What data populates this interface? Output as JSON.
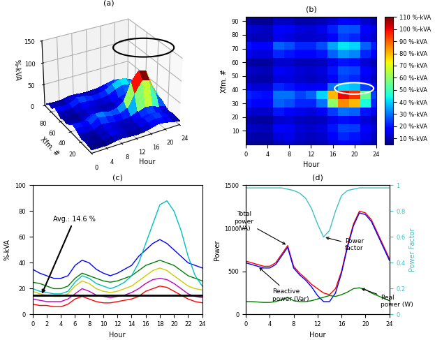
{
  "chart_data": [
    {
      "type": "surface",
      "title": "(a)",
      "x_label": "Hour",
      "y_label": "Xfm. #",
      "z_label": "%-kVA",
      "x": [
        0,
        2,
        4,
        6,
        8,
        10,
        12,
        14,
        16,
        18,
        20,
        22,
        24
      ],
      "y": [
        0,
        6,
        12,
        18,
        24,
        30,
        36,
        42,
        48,
        54,
        60,
        66,
        72,
        78,
        84,
        90
      ],
      "cells": [
        [
          8,
          7,
          7,
          10,
          12,
          10,
          9,
          10,
          14,
          18,
          16,
          12,
          9
        ],
        [
          10,
          9,
          9,
          14,
          15,
          12,
          11,
          12,
          18,
          22,
          20,
          15,
          11
        ],
        [
          12,
          11,
          10,
          18,
          16,
          13,
          12,
          14,
          20,
          25,
          24,
          17,
          13
        ],
        [
          9,
          8,
          8,
          12,
          13,
          11,
          10,
          11,
          15,
          19,
          18,
          13,
          10
        ],
        [
          14,
          12,
          12,
          20,
          18,
          15,
          14,
          16,
          24,
          30,
          28,
          20,
          15
        ],
        [
          20,
          18,
          17,
          28,
          26,
          22,
          22,
          30,
          60,
          85,
          80,
          45,
          22
        ],
        [
          22,
          20,
          19,
          30,
          30,
          25,
          28,
          40,
          80,
          100,
          95,
          55,
          25
        ],
        [
          15,
          13,
          13,
          22,
          20,
          17,
          16,
          18,
          30,
          40,
          38,
          25,
          16
        ],
        [
          10,
          9,
          9,
          14,
          14,
          12,
          11,
          12,
          18,
          24,
          22,
          15,
          11
        ],
        [
          12,
          11,
          10,
          16,
          15,
          13,
          12,
          14,
          20,
          26,
          25,
          17,
          13
        ],
        [
          9,
          8,
          8,
          12,
          12,
          10,
          10,
          11,
          15,
          20,
          19,
          13,
          10
        ],
        [
          16,
          14,
          14,
          22,
          20,
          18,
          17,
          20,
          28,
          34,
          32,
          22,
          17
        ],
        [
          20,
          18,
          18,
          28,
          26,
          22,
          22,
          26,
          35,
          42,
          40,
          28,
          21
        ],
        [
          11,
          10,
          10,
          15,
          14,
          12,
          12,
          13,
          18,
          24,
          22,
          15,
          12
        ],
        [
          13,
          12,
          11,
          17,
          16,
          14,
          13,
          15,
          21,
          27,
          26,
          18,
          14
        ],
        [
          8,
          7,
          7,
          11,
          11,
          9,
          9,
          10,
          13,
          17,
          16,
          12,
          9
        ]
      ],
      "xlim": [
        0,
        24
      ],
      "xticks": [
        0,
        4,
        8,
        12,
        16,
        20,
        24
      ],
      "ylim": [
        0,
        94
      ],
      "yticks": [
        20,
        40,
        60,
        80
      ],
      "zlim": [
        0,
        150
      ],
      "zticks": [
        0,
        50,
        100,
        150
      ]
    },
    {
      "type": "heatmap",
      "title": "(b)",
      "x_label": "Hour",
      "y_label": "Xfm. #",
      "x": [
        0,
        2,
        4,
        6,
        8,
        10,
        12,
        14,
        16,
        18,
        20,
        22,
        24
      ],
      "y": [
        0,
        6,
        12,
        18,
        24,
        30,
        36,
        42,
        48,
        54,
        60,
        66,
        72,
        78,
        84,
        90
      ],
      "cells": [
        [
          8,
          7,
          7,
          10,
          12,
          10,
          9,
          10,
          14,
          18,
          16,
          12,
          9
        ],
        [
          10,
          9,
          9,
          14,
          15,
          12,
          11,
          12,
          18,
          22,
          20,
          15,
          11
        ],
        [
          12,
          11,
          10,
          18,
          16,
          13,
          12,
          14,
          20,
          25,
          24,
          17,
          13
        ],
        [
          9,
          8,
          8,
          12,
          13,
          11,
          10,
          11,
          15,
          19,
          18,
          13,
          10
        ],
        [
          14,
          12,
          12,
          20,
          18,
          15,
          14,
          16,
          24,
          30,
          28,
          20,
          15
        ],
        [
          20,
          18,
          17,
          28,
          26,
          22,
          22,
          30,
          60,
          85,
          80,
          45,
          22
        ],
        [
          22,
          20,
          19,
          30,
          30,
          25,
          28,
          40,
          80,
          100,
          95,
          55,
          25
        ],
        [
          15,
          13,
          13,
          22,
          20,
          17,
          16,
          18,
          30,
          40,
          38,
          25,
          16
        ],
        [
          10,
          9,
          9,
          14,
          14,
          12,
          11,
          12,
          18,
          24,
          22,
          15,
          11
        ],
        [
          12,
          11,
          10,
          16,
          15,
          13,
          12,
          14,
          20,
          26,
          25,
          17,
          13
        ],
        [
          9,
          8,
          8,
          12,
          12,
          10,
          10,
          11,
          15,
          20,
          19,
          13,
          10
        ],
        [
          16,
          14,
          14,
          22,
          20,
          18,
          17,
          20,
          28,
          34,
          32,
          22,
          17
        ],
        [
          20,
          18,
          18,
          28,
          26,
          22,
          22,
          26,
          35,
          42,
          40,
          28,
          21
        ],
        [
          11,
          10,
          10,
          15,
          14,
          12,
          12,
          13,
          18,
          24,
          22,
          15,
          12
        ],
        [
          13,
          12,
          11,
          17,
          16,
          14,
          13,
          15,
          21,
          27,
          26,
          18,
          14
        ],
        [
          8,
          7,
          7,
          11,
          11,
          9,
          9,
          10,
          13,
          17,
          16,
          12,
          9
        ]
      ],
      "xlim": [
        0,
        24
      ],
      "xticks": [
        0,
        4,
        8,
        12,
        16,
        20,
        24
      ],
      "ylim": [
        0,
        93
      ],
      "yticks": [
        10,
        20,
        30,
        40,
        50,
        60,
        70,
        80,
        90
      ],
      "color_range": [
        5,
        110
      ],
      "color_ticks": [
        {
          "value": 10,
          "label": "10 %-kVA"
        },
        {
          "value": 20,
          "label": "20 %-kVA"
        },
        {
          "value": 30,
          "label": "30 %-kVA"
        },
        {
          "value": 40,
          "label": "40 %-kVA"
        },
        {
          "value": 50,
          "label": "50 %-kVA"
        },
        {
          "value": 60,
          "label": "60 %-kVA"
        },
        {
          "value": 70,
          "label": "70 %-kVA"
        },
        {
          "value": 80,
          "label": "80 %-kVA"
        },
        {
          "value": 90,
          "label": "90 %-kVA"
        },
        {
          "value": 100,
          "label": "100 %-kVA"
        },
        {
          "value": 110,
          "label": "110 %-kVA"
        }
      ]
    },
    {
      "type": "line",
      "title": "(c)",
      "x_label": "Hour",
      "y_label": "%-kVA",
      "x": [
        0,
        1,
        2,
        3,
        4,
        5,
        6,
        7,
        8,
        9,
        10,
        11,
        12,
        13,
        14,
        15,
        16,
        17,
        18,
        19,
        20,
        21,
        22,
        23,
        24
      ],
      "series": [
        {
          "color": "#0000ff",
          "values": [
            35,
            32,
            30,
            28,
            28,
            30,
            38,
            42,
            40,
            35,
            32,
            30,
            32,
            35,
            38,
            45,
            50,
            55,
            58,
            55,
            50,
            45,
            40,
            38,
            36
          ]
        },
        {
          "color": "#008000",
          "values": [
            25,
            24,
            22,
            20,
            20,
            22,
            28,
            32,
            30,
            28,
            26,
            25,
            26,
            28,
            30,
            34,
            38,
            40,
            42,
            40,
            38,
            34,
            30,
            28,
            26
          ]
        },
        {
          "color": "#cccc00",
          "values": [
            18,
            16,
            15,
            14,
            14,
            16,
            22,
            26,
            24,
            20,
            18,
            17,
            18,
            20,
            22,
            26,
            30,
            34,
            36,
            34,
            30,
            26,
            22,
            20,
            19
          ]
        },
        {
          "color": "#bf00bf",
          "values": [
            12,
            11,
            10,
            10,
            10,
            12,
            16,
            20,
            18,
            15,
            14,
            13,
            14,
            15,
            17,
            20,
            24,
            27,
            28,
            27,
            24,
            20,
            16,
            14,
            13
          ]
        },
        {
          "color": "#ff0000",
          "values": [
            8,
            7,
            7,
            6,
            6,
            8,
            12,
            14,
            12,
            10,
            9,
            9,
            10,
            11,
            12,
            14,
            18,
            20,
            22,
            21,
            18,
            15,
            12,
            10,
            9
          ]
        },
        {
          "color": "#00bfbf",
          "values": [
            20,
            18,
            17,
            16,
            16,
            18,
            25,
            30,
            28,
            24,
            22,
            20,
            22,
            25,
            30,
            40,
            55,
            70,
            85,
            88,
            80,
            65,
            45,
            30,
            22
          ]
        }
      ],
      "annotations": [
        {
          "text": "Avg.: 14.6 %",
          "y": 14.6
        }
      ],
      "xlim": [
        0,
        24
      ],
      "xticks": [
        0,
        2,
        4,
        6,
        8,
        10,
        12,
        14,
        16,
        18,
        20,
        22,
        24
      ],
      "ylim": [
        0,
        100
      ],
      "yticks": [
        0,
        20,
        40,
        60,
        80,
        100
      ]
    },
    {
      "type": "line",
      "title": "(d)",
      "x_label": "Hour",
      "y_label": "Power",
      "y2_label": "Power Factor",
      "x": [
        0,
        1,
        2,
        3,
        4,
        5,
        6,
        7,
        8,
        9,
        10,
        11,
        12,
        13,
        14,
        15,
        16,
        17,
        18,
        19,
        20,
        21,
        22,
        23,
        24
      ],
      "series": [
        {
          "color": "#ff0000",
          "values": [
            620,
            600,
            580,
            560,
            560,
            600,
            700,
            800,
            560,
            480,
            420,
            350,
            300,
            250,
            230,
            300,
            500,
            800,
            1050,
            1200,
            1180,
            1100,
            950,
            800,
            650
          ],
          "annotation": {
            "text": "Total\npower\n(VA)",
            "x": 7
          }
        },
        {
          "color": "#0000ff",
          "values": [
            600,
            580,
            560,
            540,
            540,
            580,
            680,
            780,
            540,
            460,
            400,
            320,
            220,
            150,
            150,
            250,
            480,
            780,
            1030,
            1180,
            1160,
            1080,
            930,
            780,
            630
          ],
          "annotation": {
            "text": "Reactive\npower (Var)",
            "x": 2
          }
        },
        {
          "color": "#008000",
          "values": [
            150,
            150,
            145,
            140,
            140,
            150,
            170,
            200,
            160,
            150,
            150,
            160,
            180,
            200,
            220,
            210,
            230,
            260,
            300,
            310,
            290,
            250,
            220,
            190,
            160
          ],
          "annotation": {
            "text": "Real\npower (W)",
            "x": 19
          }
        },
        {
          "color": "#40c0c0",
          "axis": "y2",
          "values": [
            0.98,
            0.98,
            0.98,
            0.98,
            0.98,
            0.98,
            0.98,
            0.97,
            0.96,
            0.94,
            0.9,
            0.82,
            0.7,
            0.6,
            0.65,
            0.8,
            0.92,
            0.96,
            0.97,
            0.98,
            0.98,
            0.98,
            0.98,
            0.98,
            0.98
          ],
          "annotation": {
            "text": "Power\nfactor",
            "x": 13
          }
        }
      ],
      "xlim": [
        0,
        24
      ],
      "xticks": [
        0,
        4,
        8,
        12,
        16,
        20,
        24
      ],
      "ylim": [
        0,
        1500
      ],
      "yticks": [
        0,
        500,
        1000,
        1500
      ],
      "y2lim": [
        0,
        1
      ],
      "y2ticks": [
        0,
        0.2,
        0.4,
        0.6,
        0.8,
        1
      ]
    }
  ]
}
